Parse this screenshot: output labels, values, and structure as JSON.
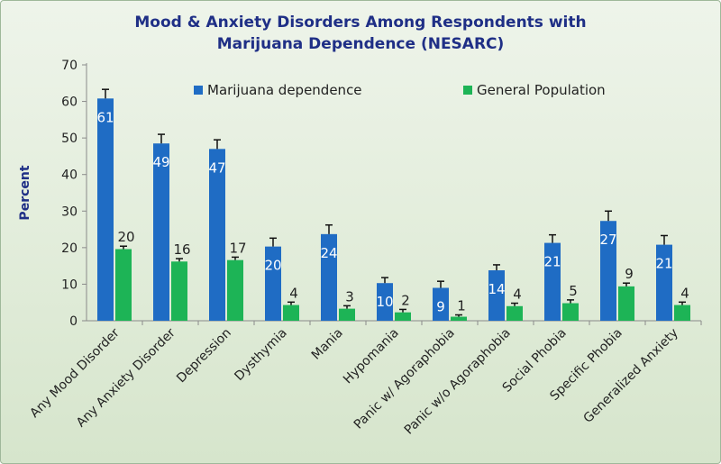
{
  "chart_data": {
    "type": "bar",
    "title_line1": "Mood & Anxiety Disorders Among Respondents with",
    "title_line2": "Marijuana Dependence (NESARC)",
    "xlabel": "",
    "ylabel": "Percent",
    "ylim": [
      0,
      70
    ],
    "yticks": [
      0,
      10,
      20,
      30,
      40,
      50,
      60,
      70
    ],
    "grid": false,
    "legend_position": "top",
    "categories": [
      "Any Mood Disorder",
      "Any Anxiety Disorder",
      "Depression",
      "Dysthymia",
      "Mania",
      "Hypomania",
      "Panic w/ Agoraphobia",
      "Panic w/o Agoraphobia",
      "Social Phobia",
      "Specific Phobia",
      "Generalized Anxiety"
    ],
    "series": [
      {
        "name": "Marijuana dependence",
        "color": "#1f6cc4",
        "values": [
          60.8,
          48.5,
          47.0,
          20.3,
          23.7,
          10.3,
          9.0,
          13.8,
          21.3,
          27.3,
          20.8
        ],
        "labels": [
          "61",
          "49",
          "47",
          "20",
          "24",
          "10",
          "9",
          "14",
          "21",
          "27",
          "21"
        ],
        "error": [
          2.5,
          2.5,
          2.5,
          2.3,
          2.5,
          1.5,
          1.8,
          1.5,
          2.2,
          2.7,
          2.5
        ]
      },
      {
        "name": "General Population",
        "color": "#1db456",
        "values": [
          19.6,
          16.2,
          16.6,
          4.3,
          3.3,
          2.3,
          1.1,
          4.0,
          4.8,
          9.4,
          4.3
        ],
        "labels": [
          "20",
          "16",
          "17",
          "4",
          "3",
          "2",
          "1",
          "4",
          "5",
          "9",
          "4"
        ],
        "error": [
          0.8,
          0.8,
          0.8,
          0.8,
          0.8,
          0.8,
          0.5,
          0.8,
          0.9,
          0.9,
          0.8
        ]
      }
    ]
  }
}
